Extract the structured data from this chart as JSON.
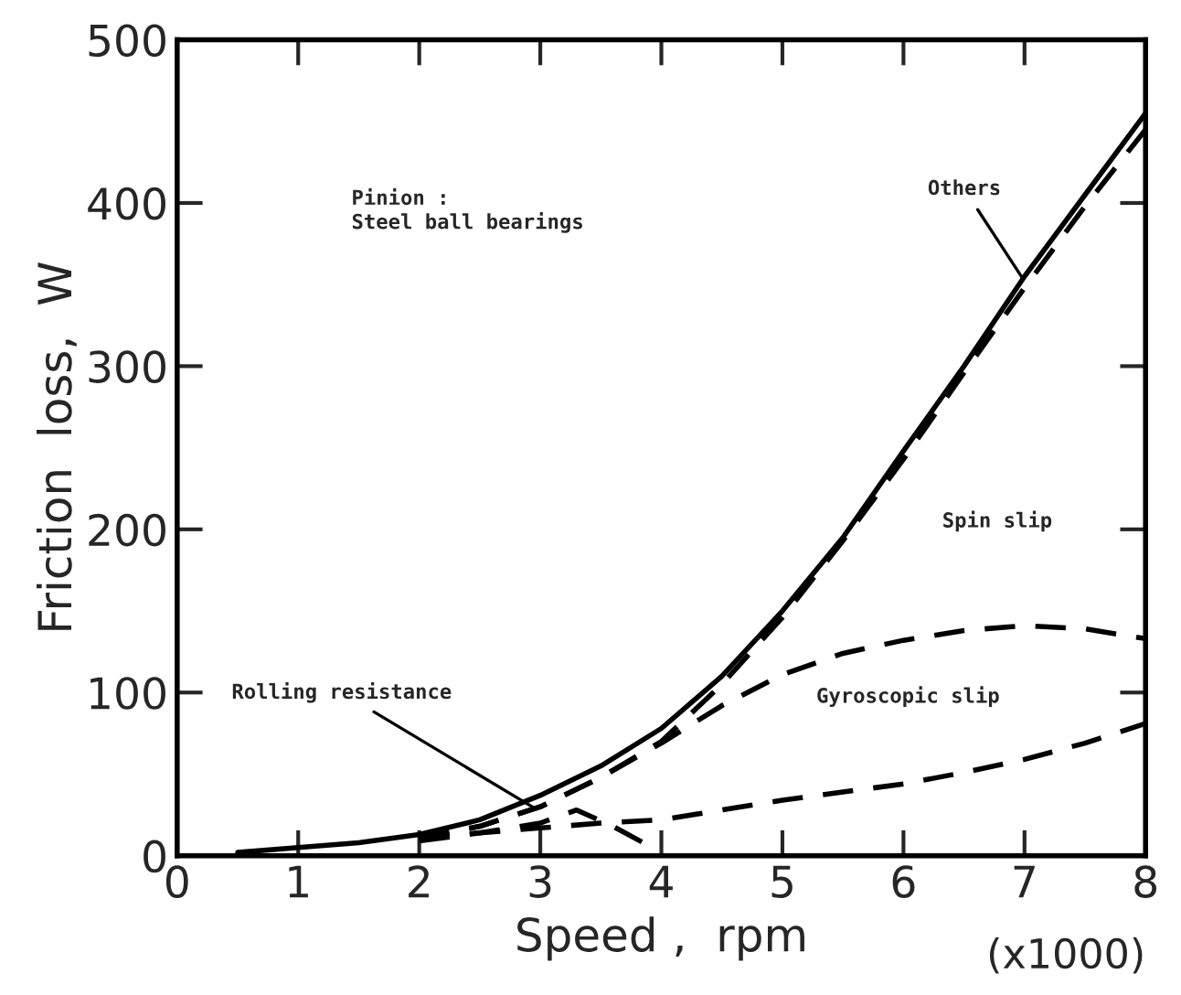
{
  "chart_data": {
    "type": "line",
    "xlabel": "Speed ,  rpm",
    "ylabel": "Friction  loss,  W",
    "xlim": [
      0,
      8
    ],
    "ylim": [
      0,
      500
    ],
    "xticks": [
      0,
      1,
      2,
      3,
      4,
      5,
      6,
      7,
      8
    ],
    "yticks": [
      0,
      100,
      200,
      300,
      400,
      500
    ],
    "grid": false,
    "legend": false,
    "series": [
      {
        "color": "#000000",
        "line_style": "solid",
        "x": [
          0.5,
          1,
          1.5,
          2,
          2.5,
          3,
          3.5,
          4,
          4.5,
          5,
          5.5,
          6,
          6.5,
          7,
          7.5,
          8
        ],
        "values": [
          2,
          5,
          8,
          13,
          22,
          37,
          55,
          78,
          110,
          150,
          195,
          248,
          300,
          355,
          405,
          455
        ]
      },
      {
        "color": "#000000",
        "line_style": "dashed",
        "x": [
          2,
          2.5,
          3,
          3.5,
          4,
          4.5,
          5,
          5.5,
          6,
          6.5,
          7,
          7.5,
          8
        ],
        "values": [
          11,
          18,
          30,
          48,
          70,
          105,
          146,
          193,
          243,
          296,
          348,
          398,
          445
        ]
      },
      {
        "color": "#000000",
        "line_style": "dashed",
        "x": [
          2,
          2.5,
          3,
          3.5,
          4,
          4.5,
          5,
          5.5,
          6,
          6.5,
          7,
          7.5,
          8
        ],
        "values": [
          11,
          18,
          30,
          48,
          69,
          92,
          111,
          124,
          132,
          138,
          141,
          139,
          133
        ]
      },
      {
        "color": "#000000",
        "line_style": "dashed",
        "x": [
          2,
          2.5,
          3,
          3.5,
          4,
          4.5,
          5,
          5.5,
          6,
          6.5,
          7,
          7.5,
          8
        ],
        "values": [
          11,
          14,
          17,
          20,
          22,
          28,
          34,
          39,
          44,
          51,
          59,
          69,
          81
        ]
      },
      {
        "color": "#000000",
        "line_style": "dashed",
        "x": [
          2,
          2.5,
          3,
          3.3,
          3.6,
          3.85
        ],
        "values": [
          9,
          14,
          20,
          28,
          18,
          8
        ]
      }
    ],
    "annotations": [
      {
        "text": "Others",
        "x": 7.0,
        "y": 352
      },
      "Pinion :\nSteel ball bearings",
      "Spin slip",
      "Gyroscopic slip",
      {
        "text": "Rolling resistance",
        "x": 3.0,
        "y": 27
      },
      "(x1000)"
    ]
  }
}
